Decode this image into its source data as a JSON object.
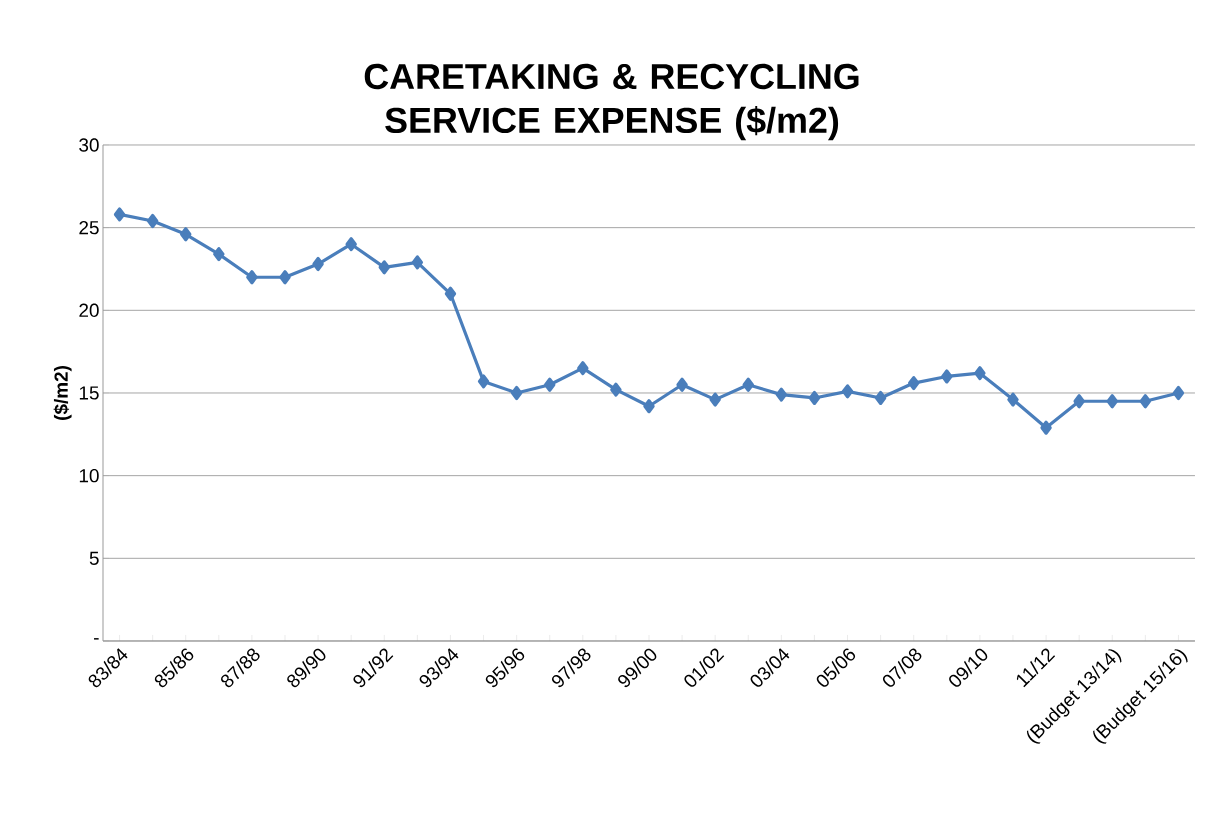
{
  "chart_data": {
    "type": "line",
    "title": "CARETAKING & RECYCLING SERVICE EXPENSE ($/m2)",
    "ylabel": "($/m2)",
    "categories": [
      "83/84",
      null,
      "85/86",
      null,
      "87/88",
      null,
      "89/90",
      null,
      "91/92",
      null,
      "93/94",
      null,
      "95/96",
      null,
      "97/98",
      null,
      "99/00",
      null,
      "01/02",
      null,
      "03/04",
      null,
      "05/06",
      null,
      "07/08",
      null,
      "09/10",
      null,
      "11/12",
      null,
      "(Budget 13/14)",
      null,
      "(Budget 15/16)"
    ],
    "series": [
      {
        "color": "#4a7ebb",
        "values": [
          25.8,
          25.4,
          24.6,
          23.4,
          22.0,
          22.0,
          22.8,
          24.0,
          22.6,
          22.9,
          21.0,
          15.7,
          15.0,
          15.5,
          16.5,
          15.2,
          14.2,
          15.5,
          14.6,
          15.5,
          14.9,
          14.7,
          15.1,
          14.7,
          15.6,
          16.0,
          16.2,
          14.6,
          12.9,
          14.5,
          14.5,
          14.5,
          15.0
        ]
      }
    ],
    "ylim": [
      0,
      30
    ],
    "yticks": [
      {
        "value": 0,
        "label": "-"
      },
      5,
      10,
      15,
      20,
      25,
      30
    ],
    "grid": "y",
    "marker": "diamond",
    "line_style": "solid"
  }
}
